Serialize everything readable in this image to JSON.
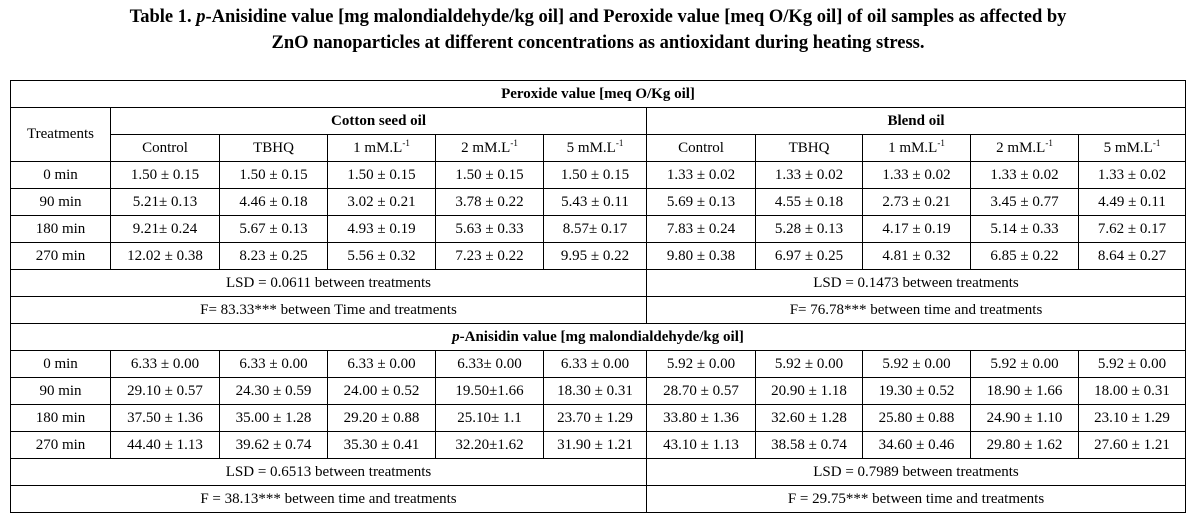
{
  "caption": {
    "lead": "Table 1.",
    "p_letter": "p",
    "line1_rest": "-Anisidine value [mg malondialdehyde/kg oil] and Peroxide value [meq O/Kg oil] of oil samples as affected by",
    "line2": "ZnO nanoparticles at different concentrations as antioxidant during heating stress."
  },
  "header": {
    "treatments": "Treatments",
    "peroxide_title": "Peroxide value [meq O/Kg oil]",
    "cotton": "Cotton seed oil",
    "blend": "Blend oil",
    "columns": [
      "Control",
      "TBHQ",
      "1 mM.L",
      "2 mM.L",
      "5 mM.L",
      "Control",
      "TBHQ",
      "1 mM.L",
      "2 mM.L",
      "5 mM.L"
    ],
    "sup": "-1"
  },
  "peroxide": {
    "rows": [
      {
        "time": "0 min",
        "cells": [
          "1.50 ± 0.15",
          "1.50 ± 0.15",
          "1.50 ± 0.15",
          "1.50 ± 0.15",
          "1.50 ± 0.15",
          "1.33 ± 0.02",
          "1.33 ± 0.02",
          "1.33 ± 0.02",
          "1.33 ± 0.02",
          "1.33 ± 0.02"
        ]
      },
      {
        "time": "90 min",
        "cells": [
          "5.21± 0.13",
          "4.46 ± 0.18",
          "3.02 ± 0.21",
          "3.78 ± 0.22",
          "5.43 ± 0.11",
          "5.69 ± 0.13",
          "4.55 ± 0.18",
          "2.73 ± 0.21",
          "3.45 ± 0.77",
          "4.49 ± 0.11"
        ]
      },
      {
        "time": "180 min",
        "cells": [
          "9.21± 0.24",
          "5.67 ± 0.13",
          "4.93 ± 0.19",
          "5.63 ± 0.33",
          "8.57± 0.17",
          "7.83 ± 0.24",
          "5.28 ± 0.13",
          "4.17 ± 0.19",
          "5.14 ± 0.33",
          "7.62 ± 0.17"
        ]
      },
      {
        "time": "270 min",
        "cells": [
          "12.02 ± 0.38",
          "8.23 ± 0.25",
          "5.56 ± 0.32",
          "7.23 ± 0.22",
          "9.95 ± 0.22",
          "9.80 ± 0.38",
          "6.97 ± 0.25",
          "4.81 ± 0.32",
          "6.85 ± 0.22",
          "8.64 ± 0.27"
        ]
      }
    ],
    "lsd_cotton": "LSD = 0.0611 between treatments",
    "lsd_blend": "LSD = 0.1473 between treatments",
    "f_cotton": "F= 83.33*** between Time and treatments",
    "f_blend": "F= 76.78*** between time and treatments"
  },
  "anisidine": {
    "title_p": "p",
    "title_rest": "-Anisidin value [mg malondialdehyde/kg oil]",
    "rows": [
      {
        "time": "0 min",
        "cells": [
          "6.33 ± 0.00",
          "6.33 ± 0.00",
          "6.33 ± 0.00",
          "6.33± 0.00",
          "6.33 ± 0.00",
          "5.92 ± 0.00",
          "5.92 ± 0.00",
          "5.92 ± 0.00",
          "5.92 ± 0.00",
          "5.92 ± 0.00"
        ]
      },
      {
        "time": "90 min",
        "cells": [
          "29.10 ± 0.57",
          "24.30 ± 0.59",
          "24.00 ± 0.52",
          "19.50±1.66",
          "18.30 ± 0.31",
          "28.70 ± 0.57",
          "20.90 ± 1.18",
          "19.30 ± 0.52",
          "18.90 ± 1.66",
          "18.00 ± 0.31"
        ]
      },
      {
        "time": "180 min",
        "cells": [
          "37.50 ± 1.36",
          "35.00 ± 1.28",
          "29.20 ± 0.88",
          "25.10± 1.1",
          "23.70 ± 1.29",
          "33.80 ± 1.36",
          "32.60 ± 1.28",
          "25.80 ± 0.88",
          "24.90 ± 1.10",
          "23.10 ± 1.29"
        ]
      },
      {
        "time": "270 min",
        "cells": [
          "44.40 ± 1.13",
          "39.62 ± 0.74",
          "35.30 ± 0.41",
          "32.20±1.62",
          "31.90 ± 1.21",
          "43.10 ± 1.13",
          "38.58 ± 0.74",
          "34.60 ± 0.46",
          "29.80 ± 1.62",
          "27.60 ± 1.21"
        ]
      }
    ],
    "lsd_cotton": "LSD = 0.6513 between treatments",
    "lsd_blend": "LSD = 0.7989 between treatments",
    "f_cotton": "F = 38.13*** between time and treatments",
    "f_blend": "F = 29.75*** between time and treatments"
  }
}
